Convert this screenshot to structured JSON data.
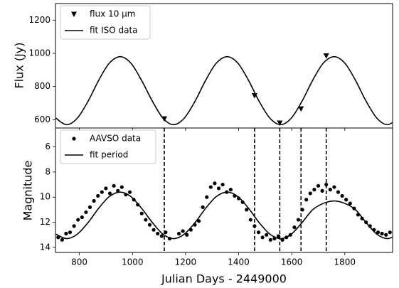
{
  "chart_data": [
    {
      "type": "line",
      "ylabel": "Flux (Jy)",
      "xlim": [
        710,
        1980
      ],
      "xticks": [
        800,
        1000,
        1200,
        1400,
        1600,
        1800
      ],
      "ylim": [
        550,
        1300
      ],
      "yticks": [
        600,
        800,
        1000,
        1200
      ],
      "legend": "upper left",
      "series": [
        {
          "name": "flux 10 μm",
          "type": "scatter",
          "marker": "triangle-down",
          "color": "#000000",
          "x": [
            1120,
            1460,
            1555,
            1635,
            1730
          ],
          "values": [
            605,
            745,
            580,
            665,
            985
          ]
        },
        {
          "name": "fit ISO data",
          "type": "line",
          "color": "#000000",
          "x": [
            712,
            752,
            792,
            833,
            873,
            913,
            954,
            994,
            1034,
            1075,
            1115,
            1155,
            1195,
            1236,
            1276,
            1316,
            1357,
            1397,
            1437,
            1477,
            1518,
            1558,
            1598,
            1639,
            1679,
            1719,
            1760,
            1800,
            1840,
            1880,
            1921,
            1961,
            2001
          ],
          "values": [
            609,
            570,
            609,
            712,
            838,
            941,
            980,
            941,
            838,
            712,
            609,
            570,
            609,
            712,
            838,
            941,
            980,
            941,
            838,
            712,
            609,
            570,
            609,
            712,
            838,
            941,
            980,
            941,
            838,
            712,
            609,
            570,
            609
          ]
        }
      ]
    },
    {
      "type": "line",
      "xlabel": "Julian Days - 2449000",
      "ylabel": "Magnitude",
      "xlim": [
        710,
        1980
      ],
      "xticks": [
        800,
        1000,
        1200,
        1400,
        1600,
        1800
      ],
      "ylim": [
        4.5,
        14.4
      ],
      "yticks": [
        6,
        8,
        10,
        12,
        14
      ],
      "y_inverted": true,
      "legend": "upper left",
      "vlines": [
        1120,
        1460,
        1555,
        1635,
        1730
      ],
      "series": [
        {
          "name": "AAVSO data",
          "type": "scatter",
          "marker": "circle",
          "color": "#000000",
          "x": [
            720,
            735,
            750,
            765,
            780,
            795,
            810,
            825,
            840,
            855,
            870,
            885,
            900,
            915,
            930,
            945,
            960,
            975,
            990,
            1005,
            1020,
            1035,
            1050,
            1065,
            1080,
            1095,
            1110,
            1125,
            1140,
            1175,
            1190,
            1205,
            1220,
            1235,
            1250,
            1265,
            1280,
            1295,
            1310,
            1325,
            1340,
            1355,
            1370,
            1385,
            1400,
            1415,
            1430,
            1445,
            1460,
            1475,
            1490,
            1505,
            1520,
            1535,
            1550,
            1565,
            1580,
            1595,
            1610,
            1625,
            1640,
            1655,
            1670,
            1685,
            1700,
            1715,
            1730,
            1745,
            1760,
            1775,
            1790,
            1805,
            1820,
            1835,
            1850,
            1865,
            1880,
            1895,
            1910,
            1925,
            1940,
            1955,
            1970
          ],
          "values": [
            13.2,
            13.4,
            12.9,
            12.8,
            12.3,
            11.8,
            11.6,
            11.2,
            10.8,
            10.3,
            9.9,
            9.6,
            9.3,
            9.7,
            9.1,
            9.5,
            9.2,
            9.8,
            9.6,
            10.2,
            10.6,
            11.3,
            11.8,
            12.2,
            12.6,
            12.9,
            13.1,
            12.8,
            13.3,
            12.9,
            12.7,
            13.0,
            12.6,
            12.2,
            11.9,
            10.8,
            10.0,
            9.2,
            8.9,
            9.3,
            9.0,
            9.6,
            9.4,
            9.9,
            10.1,
            10.4,
            11.0,
            11.8,
            12.3,
            12.8,
            13.2,
            13.0,
            13.4,
            13.3,
            13.1,
            13.4,
            13.2,
            13.0,
            12.4,
            11.8,
            11.0,
            10.2,
            9.7,
            9.4,
            9.1,
            9.5,
            9.0,
            9.4,
            9.2,
            9.6,
            9.9,
            10.2,
            10.5,
            10.9,
            11.4,
            11.7,
            12.0,
            12.3,
            12.6,
            12.8,
            12.9,
            13.0,
            12.8
          ]
        },
        {
          "name": "fit period",
          "type": "line",
          "color": "#000000",
          "x": [
            712,
            752,
            792,
            833,
            873,
            913,
            954,
            994,
            1034,
            1075,
            1115,
            1155,
            1195,
            1236,
            1276,
            1316,
            1357,
            1397,
            1437,
            1477,
            1518,
            1558,
            1598,
            1639,
            1679,
            1719,
            1760,
            1800,
            1840,
            1880,
            1921,
            1961,
            2001
          ],
          "values": [
            12.95,
            13.3,
            12.95,
            12.02,
            10.88,
            9.95,
            9.6,
            9.95,
            10.88,
            12.02,
            12.95,
            13.3,
            12.95,
            12.02,
            10.88,
            9.95,
            9.6,
            9.95,
            10.88,
            12.02,
            12.95,
            13.3,
            12.95,
            12.02,
            11.0,
            10.5,
            10.3,
            10.5,
            11.0,
            12.02,
            12.95,
            13.3,
            12.95
          ]
        }
      ]
    }
  ]
}
